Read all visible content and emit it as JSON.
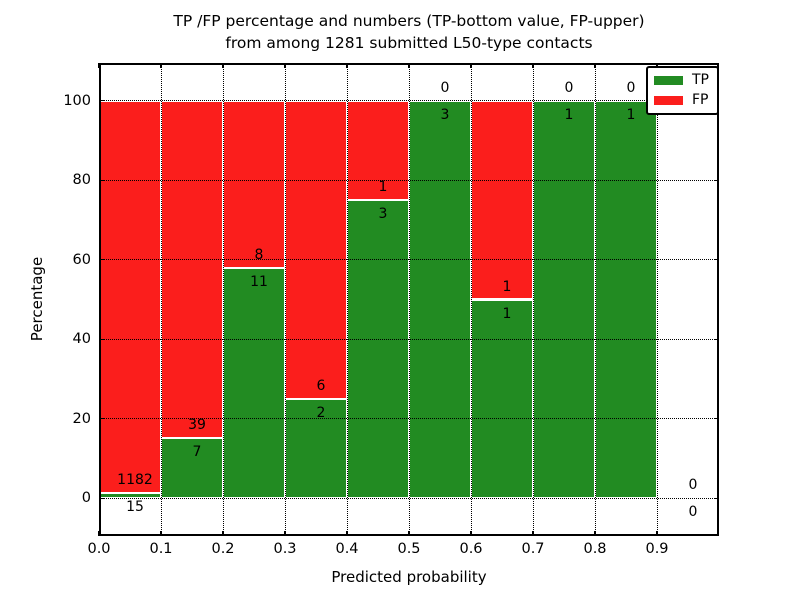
{
  "title": {
    "lines": [
      "TP /FP percentage and numbers (TP-bottom value, FP-upper)",
      "from among 1281 submitted L50-type contacts"
    ]
  },
  "axes": {
    "xlabel": "Predicted probability",
    "ylabel": "Percentage",
    "x_ticks": [
      {
        "v": 0.0,
        "label": "0.0"
      },
      {
        "v": 0.1,
        "label": "0.1"
      },
      {
        "v": 0.2,
        "label": "0.2"
      },
      {
        "v": 0.3,
        "label": "0.3"
      },
      {
        "v": 0.4,
        "label": "0.4"
      },
      {
        "v": 0.5,
        "label": "0.5"
      },
      {
        "v": 0.6,
        "label": "0.6"
      },
      {
        "v": 0.7,
        "label": "0.7"
      },
      {
        "v": 0.8,
        "label": "0.8"
      },
      {
        "v": 0.9,
        "label": "0.9"
      }
    ],
    "y_ticks": [
      {
        "v": 0,
        "label": "0"
      },
      {
        "v": 20,
        "label": "20"
      },
      {
        "v": 40,
        "label": "40"
      },
      {
        "v": 60,
        "label": "60"
      },
      {
        "v": 80,
        "label": "80"
      },
      {
        "v": 100,
        "label": "100"
      }
    ]
  },
  "legend": {
    "items": [
      {
        "label": "TP",
        "color": "#228b22"
      },
      {
        "label": "FP",
        "color": "#fb1e1c"
      }
    ]
  },
  "chart_data": {
    "type": "bar",
    "stacked": true,
    "title": "TP /FP percentage and numbers (TP-bottom value, FP-upper) from among 1281 submitted L50-type contacts",
    "xlabel": "Predicted probability",
    "ylabel": "Percentage",
    "xlim": [
      0.0,
      1.0
    ],
    "ylim": [
      -9.5,
      109.5
    ],
    "grid": true,
    "legend_position": "upper right",
    "total_contacts": 1281,
    "colors": {
      "tp": "#228b22",
      "fp": "#fb1e1c",
      "bar_edge": "#ffffff",
      "grid": "#000000"
    },
    "categories": [
      "0.0-0.1",
      "0.1-0.2",
      "0.2-0.3",
      "0.3-0.4",
      "0.4-0.5",
      "0.5-0.6",
      "0.6-0.7",
      "0.7-0.8",
      "0.8-0.9",
      "0.9-1.0"
    ],
    "bins": [
      {
        "x0": 0.0,
        "x1": 0.1,
        "tp": 15,
        "fp": 1182,
        "tp_pct": 1.253
      },
      {
        "x0": 0.1,
        "x1": 0.2,
        "tp": 7,
        "fp": 39,
        "tp_pct": 15.217
      },
      {
        "x0": 0.2,
        "x1": 0.3,
        "tp": 11,
        "fp": 8,
        "tp_pct": 57.895
      },
      {
        "x0": 0.3,
        "x1": 0.4,
        "tp": 2,
        "fp": 6,
        "tp_pct": 25.0
      },
      {
        "x0": 0.4,
        "x1": 0.5,
        "tp": 3,
        "fp": 1,
        "tp_pct": 75.0
      },
      {
        "x0": 0.5,
        "x1": 0.6,
        "tp": 3,
        "fp": 0,
        "tp_pct": 100.0
      },
      {
        "x0": 0.6,
        "x1": 0.7,
        "tp": 1,
        "fp": 1,
        "tp_pct": 50.0
      },
      {
        "x0": 0.7,
        "x1": 0.8,
        "tp": 1,
        "fp": 0,
        "tp_pct": 100.0
      },
      {
        "x0": 0.8,
        "x1": 0.9,
        "tp": 1,
        "fp": 0,
        "tp_pct": 100.0
      },
      {
        "x0": 0.9,
        "x1": 1.0,
        "tp": 0,
        "fp": 0,
        "tp_pct": null
      }
    ]
  }
}
